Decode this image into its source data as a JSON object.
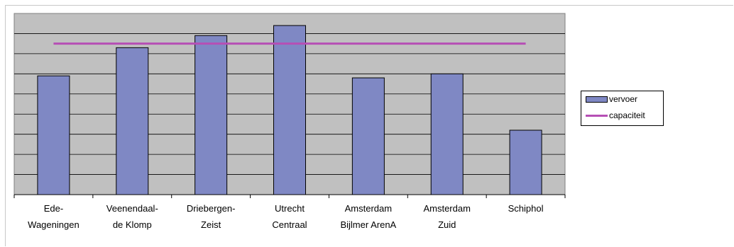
{
  "chart_data": {
    "type": "bar",
    "categories": [
      [
        "Ede-",
        "Wageningen"
      ],
      [
        "Veenendaal-",
        "de Klomp"
      ],
      [
        "Driebergen-",
        "Zeist"
      ],
      [
        "Utrecht",
        "Centraal"
      ],
      [
        "Amsterdam",
        "Bijlmer ArenA"
      ],
      [
        "Amsterdam",
        "Zuid"
      ],
      [
        "Schiphol"
      ]
    ],
    "series": [
      {
        "name": "vervoer",
        "type": "bar",
        "color": "#7f88c4",
        "values": [
          5.9,
          7.3,
          7.9,
          8.4,
          5.8,
          6.0,
          3.2
        ]
      },
      {
        "name": "capaciteit",
        "type": "line",
        "color": "#b64fb5",
        "values": [
          7.5,
          7.5,
          7.5,
          7.5,
          7.5,
          7.5,
          7.5
        ]
      }
    ],
    "ylim": [
      0,
      9
    ],
    "gridlines": 9,
    "grid": true,
    "plot_background": "#c0c0c0",
    "legend_placement": "right"
  }
}
